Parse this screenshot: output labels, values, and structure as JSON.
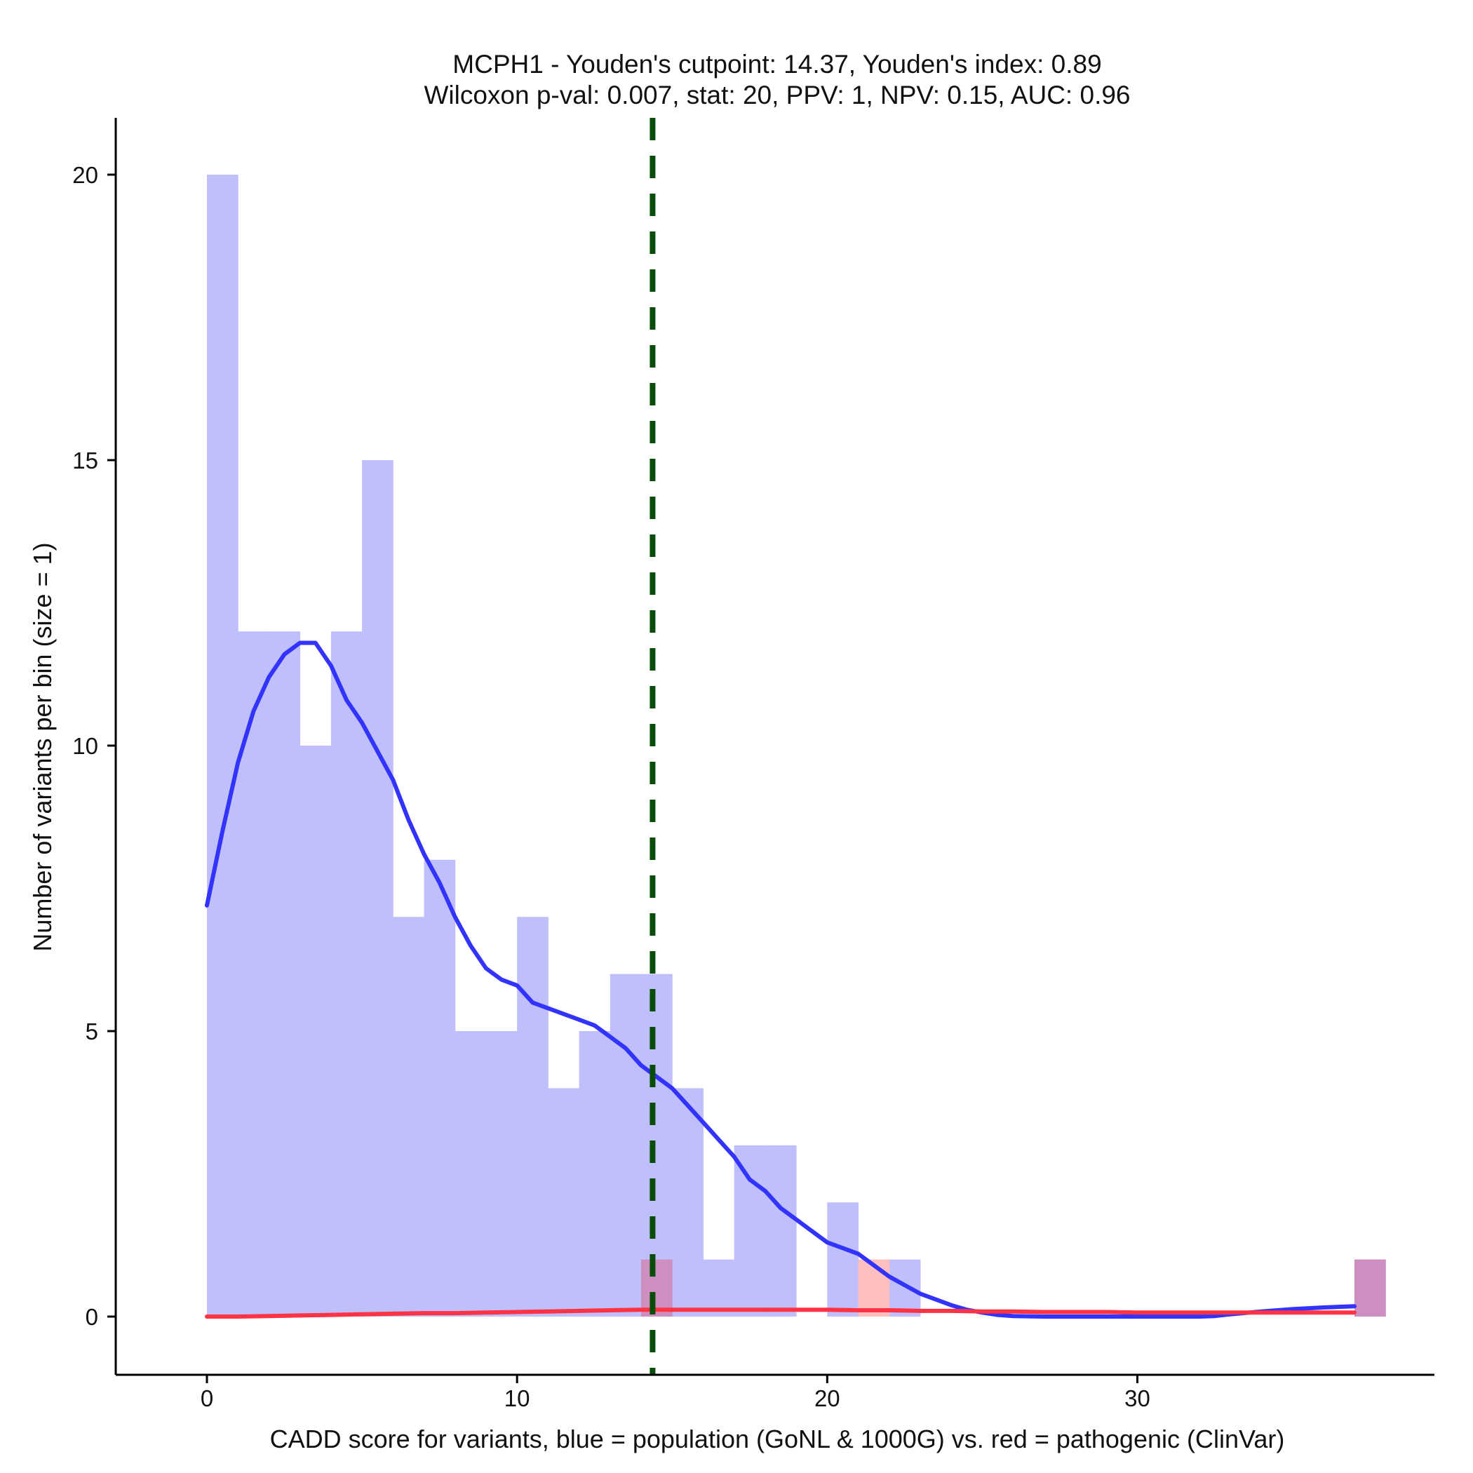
{
  "chart_data": {
    "type": "bar",
    "title_line1": "MCPH1 - Youden's cutpoint: 14.37, Youden's index: 0.89",
    "title_line2": "Wilcoxon p-val: 0.007, stat: 20, PPV: 1, NPV: 0.15, AUC: 0.96",
    "xlabel": "CADD score for variants, blue = population (GoNL & 1000G) vs. red = pathogenic (ClinVar)",
    "ylabel": "Number of variants per bin (size = 1)",
    "xlim": [
      -3,
      40
    ],
    "ylim": [
      -1,
      21
    ],
    "x_ticks": [
      0,
      10,
      20,
      30
    ],
    "y_ticks": [
      0,
      5,
      10,
      15,
      20
    ],
    "bin_width": 1,
    "cutpoint": 14.37,
    "colors": {
      "population_bar": "#bfbffc",
      "pathogenic_bar": "#ffbfbf",
      "overlap_bar": "#cc8fbf",
      "population_line": "#3333ff",
      "pathogenic_line": "#ff3344",
      "cutpoint_line": "#0a4d0a"
    },
    "population_bins": [
      {
        "start": 0,
        "count": 20
      },
      {
        "start": 1,
        "count": 12
      },
      {
        "start": 2,
        "count": 12
      },
      {
        "start": 3,
        "count": 10
      },
      {
        "start": 4,
        "count": 12
      },
      {
        "start": 5,
        "count": 15
      },
      {
        "start": 6,
        "count": 7
      },
      {
        "start": 7,
        "count": 8
      },
      {
        "start": 8,
        "count": 5
      },
      {
        "start": 9,
        "count": 5
      },
      {
        "start": 10,
        "count": 7
      },
      {
        "start": 11,
        "count": 4
      },
      {
        "start": 12,
        "count": 5
      },
      {
        "start": 13,
        "count": 6
      },
      {
        "start": 14,
        "count": 6
      },
      {
        "start": 15,
        "count": 4
      },
      {
        "start": 16,
        "count": 1
      },
      {
        "start": 17,
        "count": 3
      },
      {
        "start": 18,
        "count": 3
      },
      {
        "start": 20,
        "count": 2
      },
      {
        "start": 21,
        "count": 1
      },
      {
        "start": 22,
        "count": 1
      },
      {
        "start": 37,
        "count": 1
      }
    ],
    "pathogenic_bins": [
      {
        "start": 14,
        "count": 1
      },
      {
        "start": 21,
        "count": 1
      },
      {
        "start": 37,
        "count": 1
      }
    ],
    "series": [
      {
        "values": [
          [
            0,
            7.2
          ],
          [
            0.5,
            8.5
          ],
          [
            1,
            9.7
          ],
          [
            1.5,
            10.6
          ],
          [
            2,
            11.2
          ],
          [
            2.5,
            11.6
          ],
          [
            3,
            11.8
          ],
          [
            3.5,
            11.8
          ],
          [
            4,
            11.4
          ],
          [
            4.5,
            10.8
          ],
          [
            5,
            10.4
          ],
          [
            5.5,
            9.9
          ],
          [
            6,
            9.4
          ],
          [
            6.5,
            8.7
          ],
          [
            7,
            8.1
          ],
          [
            7.5,
            7.6
          ],
          [
            8,
            7.0
          ],
          [
            8.5,
            6.5
          ],
          [
            9,
            6.1
          ],
          [
            9.5,
            5.9
          ],
          [
            10,
            5.8
          ],
          [
            10.5,
            5.5
          ],
          [
            11,
            5.4
          ],
          [
            11.5,
            5.3
          ],
          [
            12,
            5.2
          ],
          [
            12.5,
            5.1
          ],
          [
            13,
            4.9
          ],
          [
            13.5,
            4.7
          ],
          [
            14,
            4.4
          ],
          [
            14.5,
            4.2
          ],
          [
            15,
            4.0
          ],
          [
            15.5,
            3.7
          ],
          [
            16,
            3.4
          ],
          [
            16.5,
            3.1
          ],
          [
            17,
            2.8
          ],
          [
            17.5,
            2.4
          ],
          [
            18,
            2.2
          ],
          [
            18.5,
            1.9
          ],
          [
            19,
            1.7
          ],
          [
            19.5,
            1.5
          ],
          [
            20,
            1.3
          ],
          [
            20.5,
            1.2
          ],
          [
            21,
            1.1
          ],
          [
            21.5,
            0.9
          ],
          [
            22,
            0.7
          ],
          [
            22.5,
            0.55
          ],
          [
            23,
            0.4
          ],
          [
            23.5,
            0.3
          ],
          [
            24,
            0.2
          ],
          [
            24.5,
            0.12
          ],
          [
            25,
            0.07
          ],
          [
            25.5,
            0.03
          ],
          [
            26,
            0.01
          ],
          [
            27,
            0
          ],
          [
            28,
            0
          ],
          [
            29,
            0
          ],
          [
            30,
            0
          ],
          [
            31,
            0
          ],
          [
            32,
            0
          ],
          [
            32.5,
            0.01
          ],
          [
            33,
            0.04
          ],
          [
            34,
            0.09
          ],
          [
            35,
            0.13
          ],
          [
            36,
            0.16
          ],
          [
            37,
            0.18
          ]
        ]
      },
      {
        "values": [
          [
            0,
            0
          ],
          [
            1,
            0
          ],
          [
            2,
            0.01
          ],
          [
            3,
            0.02
          ],
          [
            4,
            0.03
          ],
          [
            5,
            0.04
          ],
          [
            6,
            0.05
          ],
          [
            7,
            0.06
          ],
          [
            8,
            0.06
          ],
          [
            9,
            0.07
          ],
          [
            10,
            0.08
          ],
          [
            11,
            0.09
          ],
          [
            12,
            0.1
          ],
          [
            13,
            0.11
          ],
          [
            14,
            0.12
          ],
          [
            15,
            0.12
          ],
          [
            16,
            0.12
          ],
          [
            17,
            0.12
          ],
          [
            18,
            0.12
          ],
          [
            19,
            0.12
          ],
          [
            20,
            0.12
          ],
          [
            21,
            0.11
          ],
          [
            22,
            0.11
          ],
          [
            23,
            0.1
          ],
          [
            24,
            0.1
          ],
          [
            25,
            0.09
          ],
          [
            26,
            0.09
          ],
          [
            27,
            0.08
          ],
          [
            28,
            0.08
          ],
          [
            29,
            0.08
          ],
          [
            30,
            0.07
          ],
          [
            31,
            0.07
          ],
          [
            32,
            0.07
          ],
          [
            33,
            0.07
          ],
          [
            34,
            0.07
          ],
          [
            35,
            0.07
          ],
          [
            36,
            0.07
          ],
          [
            37,
            0.07
          ]
        ]
      }
    ]
  }
}
